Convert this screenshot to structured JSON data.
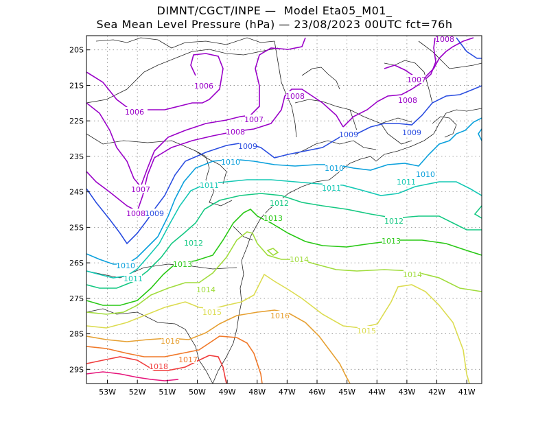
{
  "header": {
    "title_line1": "DIMNT/CGCT/INPE —  Model Eta05_M01_",
    "title_line2": "Sea Mean Level Pressure (hPa) — 23/08/2023 00UTC fct=76h"
  },
  "map": {
    "lon_range": [
      -53.7,
      -40.5
    ],
    "lat_range": [
      -29.4,
      -19.6
    ],
    "lon_ticks": [
      "53W",
      "52W",
      "51W",
      "50W",
      "49W",
      "48W",
      "47W",
      "46W",
      "45W",
      "44W",
      "43W",
      "42W",
      "41W"
    ],
    "lat_ticks": [
      "20S",
      "21S",
      "22S",
      "23S",
      "24S",
      "25S",
      "26S",
      "27S",
      "28S",
      "29S"
    ],
    "grid": "dotted",
    "colors": {
      "1006": "#9a00c8",
      "1007": "#9a00c8",
      "1008": "#9a00c8",
      "1009": "#2a4de0",
      "1010": "#0aa0dc",
      "1011": "#14c8b4",
      "1012": "#14c882",
      "1013": "#28c814",
      "1014": "#a0dc3c",
      "1015": "#dcdc50",
      "1016": "#e6a032",
      "1017": "#f07828",
      "1018": "#f03c3c",
      "1019": "#e6147a"
    },
    "contour_labels": [
      {
        "text": "1006",
        "level": "1006"
      },
      {
        "text": "1006",
        "level": "1006"
      },
      {
        "text": "1007",
        "level": "1007"
      },
      {
        "text": "1007",
        "level": "1007"
      },
      {
        "text": "1007",
        "level": "1007"
      },
      {
        "text": "1008",
        "level": "1008"
      },
      {
        "text": "1008",
        "level": "1008"
      },
      {
        "text": "1008",
        "level": "1008"
      },
      {
        "text": "1008",
        "level": "1008"
      },
      {
        "text": "1008",
        "level": "1008"
      },
      {
        "text": "1009",
        "level": "1009"
      },
      {
        "text": "1009",
        "level": "1009"
      },
      {
        "text": "1009",
        "level": "1009"
      },
      {
        "text": "1009",
        "level": "1009"
      },
      {
        "text": "1010",
        "level": "1010"
      },
      {
        "text": "1010",
        "level": "1010"
      },
      {
        "text": "1010",
        "level": "1010"
      },
      {
        "text": "1010",
        "level": "1010"
      },
      {
        "text": "1011",
        "level": "1011"
      },
      {
        "text": "1011",
        "level": "1011"
      },
      {
        "text": "1011",
        "level": "1011"
      },
      {
        "text": "1011",
        "level": "1011"
      },
      {
        "text": "1012",
        "level": "1012"
      },
      {
        "text": "1012",
        "level": "1012"
      },
      {
        "text": "1012",
        "level": "1012"
      },
      {
        "text": "1013",
        "level": "1013"
      },
      {
        "text": "1013",
        "level": "1013"
      },
      {
        "text": "1013",
        "level": "1013"
      },
      {
        "text": "1014",
        "level": "1014"
      },
      {
        "text": "1014",
        "level": "1014"
      },
      {
        "text": "1014",
        "level": "1014"
      },
      {
        "text": "1015",
        "level": "1015"
      },
      {
        "text": "1015",
        "level": "1015"
      },
      {
        "text": "1016",
        "level": "1016"
      },
      {
        "text": "1016",
        "level": "1016"
      },
      {
        "text": "1017",
        "level": "1017"
      },
      {
        "text": "1018",
        "level": "1018"
      }
    ]
  }
}
